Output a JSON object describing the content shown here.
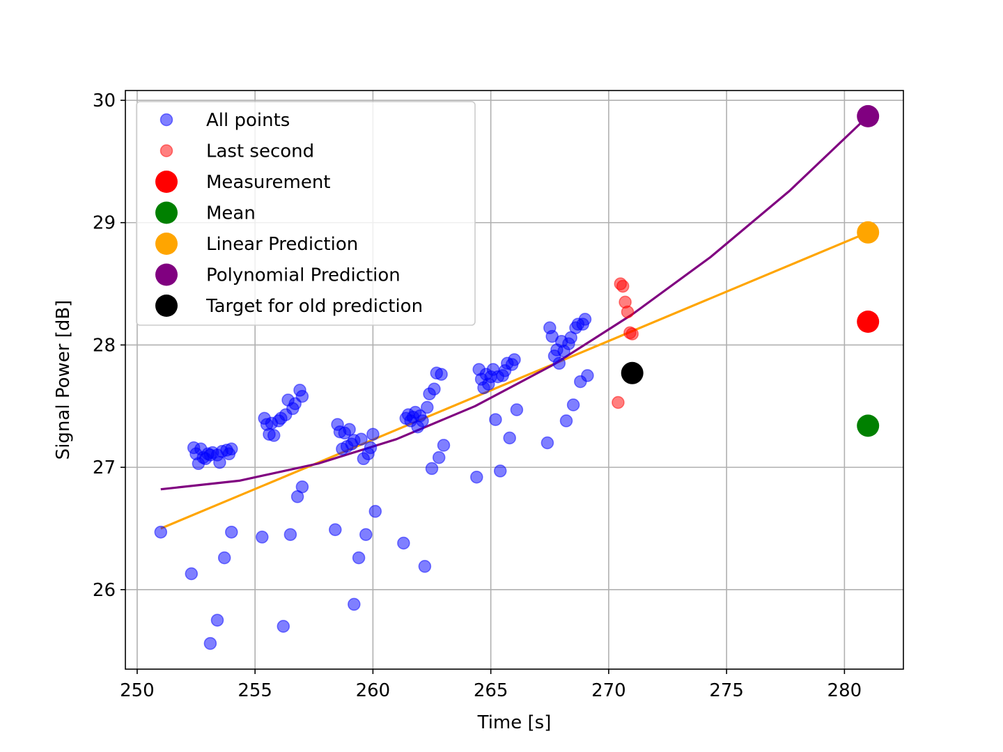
{
  "chart_data": {
    "type": "scatter",
    "title": "",
    "xlabel": "Time [s]",
    "ylabel": "Signal Power [dB]",
    "xlim": [
      249.5,
      282.5
    ],
    "ylim": [
      25.35,
      30.08
    ],
    "xticks": [
      250,
      255,
      260,
      265,
      270,
      275,
      280
    ],
    "yticks": [
      26,
      27,
      28,
      29,
      30
    ],
    "grid": true,
    "legend_position": "upper-left",
    "series": [
      {
        "name": "All points",
        "kind": "scatter",
        "color": "#0000ff",
        "alpha": 0.5,
        "points": [
          [
            251.0,
            26.47
          ],
          [
            252.3,
            26.13
          ],
          [
            252.4,
            27.16
          ],
          [
            252.5,
            27.11
          ],
          [
            252.6,
            27.03
          ],
          [
            252.7,
            27.15
          ],
          [
            252.8,
            27.08
          ],
          [
            252.9,
            27.07
          ],
          [
            253.0,
            27.11
          ],
          [
            253.1,
            27.1
          ],
          [
            253.1,
            25.56
          ],
          [
            253.2,
            27.12
          ],
          [
            253.4,
            25.75
          ],
          [
            253.4,
            27.1
          ],
          [
            253.5,
            27.04
          ],
          [
            253.6,
            27.13
          ],
          [
            253.7,
            26.26
          ],
          [
            253.8,
            27.14
          ],
          [
            253.9,
            27.11
          ],
          [
            254.0,
            27.15
          ],
          [
            254.0,
            26.47
          ],
          [
            255.3,
            26.43
          ],
          [
            255.4,
            27.4
          ],
          [
            255.5,
            27.35
          ],
          [
            255.6,
            27.27
          ],
          [
            255.7,
            27.36
          ],
          [
            255.8,
            27.26
          ],
          [
            256.0,
            27.38
          ],
          [
            256.1,
            27.4
          ],
          [
            256.2,
            25.7
          ],
          [
            256.3,
            27.43
          ],
          [
            256.4,
            27.55
          ],
          [
            256.5,
            26.45
          ],
          [
            256.6,
            27.48
          ],
          [
            256.7,
            27.52
          ],
          [
            256.8,
            26.76
          ],
          [
            256.9,
            27.63
          ],
          [
            257.0,
            27.58
          ],
          [
            257.0,
            26.84
          ],
          [
            258.4,
            26.49
          ],
          [
            258.5,
            27.35
          ],
          [
            258.6,
            27.29
          ],
          [
            258.7,
            27.15
          ],
          [
            258.8,
            27.28
          ],
          [
            258.9,
            27.17
          ],
          [
            259.0,
            27.31
          ],
          [
            259.1,
            27.19
          ],
          [
            259.2,
            25.88
          ],
          [
            259.2,
            27.22
          ],
          [
            259.4,
            26.26
          ],
          [
            259.5,
            27.23
          ],
          [
            259.6,
            27.07
          ],
          [
            259.7,
            26.45
          ],
          [
            259.8,
            27.11
          ],
          [
            259.9,
            27.16
          ],
          [
            260.0,
            27.27
          ],
          [
            260.1,
            26.64
          ],
          [
            261.3,
            26.38
          ],
          [
            261.4,
            27.4
          ],
          [
            261.5,
            27.43
          ],
          [
            261.6,
            27.38
          ],
          [
            261.7,
            27.41
          ],
          [
            261.8,
            27.45
          ],
          [
            261.9,
            27.33
          ],
          [
            262.0,
            27.42
          ],
          [
            262.1,
            27.38
          ],
          [
            262.2,
            26.19
          ],
          [
            262.3,
            27.49
          ],
          [
            262.4,
            27.6
          ],
          [
            262.5,
            26.99
          ],
          [
            262.6,
            27.64
          ],
          [
            262.7,
            27.77
          ],
          [
            262.8,
            27.08
          ],
          [
            262.9,
            27.76
          ],
          [
            263.0,
            27.18
          ],
          [
            264.4,
            26.92
          ],
          [
            264.5,
            27.8
          ],
          [
            264.6,
            27.72
          ],
          [
            264.7,
            27.65
          ],
          [
            264.8,
            27.76
          ],
          [
            264.9,
            27.68
          ],
          [
            265.0,
            27.74
          ],
          [
            265.1,
            27.8
          ],
          [
            265.2,
            27.39
          ],
          [
            265.3,
            27.74
          ],
          [
            265.4,
            26.97
          ],
          [
            265.5,
            27.75
          ],
          [
            265.6,
            27.79
          ],
          [
            265.7,
            27.85
          ],
          [
            265.8,
            27.24
          ],
          [
            265.9,
            27.84
          ],
          [
            266.0,
            27.88
          ],
          [
            266.1,
            27.47
          ],
          [
            267.4,
            27.2
          ],
          [
            267.5,
            28.14
          ],
          [
            267.6,
            28.07
          ],
          [
            267.7,
            27.91
          ],
          [
            267.8,
            27.96
          ],
          [
            267.9,
            27.85
          ],
          [
            268.0,
            28.03
          ],
          [
            268.1,
            27.95
          ],
          [
            268.2,
            27.38
          ],
          [
            268.3,
            28.01
          ],
          [
            268.4,
            28.06
          ],
          [
            268.5,
            27.51
          ],
          [
            268.6,
            28.14
          ],
          [
            268.7,
            28.17
          ],
          [
            268.8,
            27.7
          ],
          [
            268.9,
            28.17
          ],
          [
            269.0,
            28.21
          ],
          [
            269.1,
            27.75
          ]
        ]
      },
      {
        "name": "Last second",
        "kind": "scatter",
        "color": "#ff0000",
        "alpha": 0.5,
        "points": [
          [
            270.4,
            27.53
          ],
          [
            270.5,
            28.5
          ],
          [
            270.6,
            28.48
          ],
          [
            270.7,
            28.35
          ],
          [
            270.8,
            28.27
          ],
          [
            270.9,
            28.1
          ],
          [
            271.0,
            28.09
          ]
        ]
      },
      {
        "name": "Measurement",
        "kind": "marker",
        "color": "#ff0000",
        "points": [
          [
            281.0,
            28.19
          ]
        ]
      },
      {
        "name": "Mean",
        "kind": "marker",
        "color": "#008000",
        "points": [
          [
            281.0,
            27.34
          ]
        ]
      },
      {
        "name": "Linear Prediction",
        "kind": "line-marker",
        "color": "#ffa500",
        "line": [
          [
            251.0,
            26.5
          ],
          [
            281.0,
            28.92
          ]
        ],
        "points": [
          [
            281.0,
            28.92
          ]
        ]
      },
      {
        "name": "Polynomial Prediction",
        "kind": "line-marker",
        "color": "#800080",
        "line": [
          [
            251.0,
            26.82
          ],
          [
            254.33,
            26.89
          ],
          [
            257.67,
            27.03
          ],
          [
            261.0,
            27.23
          ],
          [
            264.33,
            27.5
          ],
          [
            267.67,
            27.84
          ],
          [
            271.0,
            28.25
          ],
          [
            274.33,
            28.72
          ],
          [
            277.67,
            29.26
          ],
          [
            281.0,
            29.87
          ]
        ],
        "points": [
          [
            281.0,
            29.87
          ]
        ]
      },
      {
        "name": "Target for old prediction",
        "kind": "marker",
        "color": "#000000",
        "points": [
          [
            271.0,
            27.77
          ]
        ]
      }
    ]
  }
}
